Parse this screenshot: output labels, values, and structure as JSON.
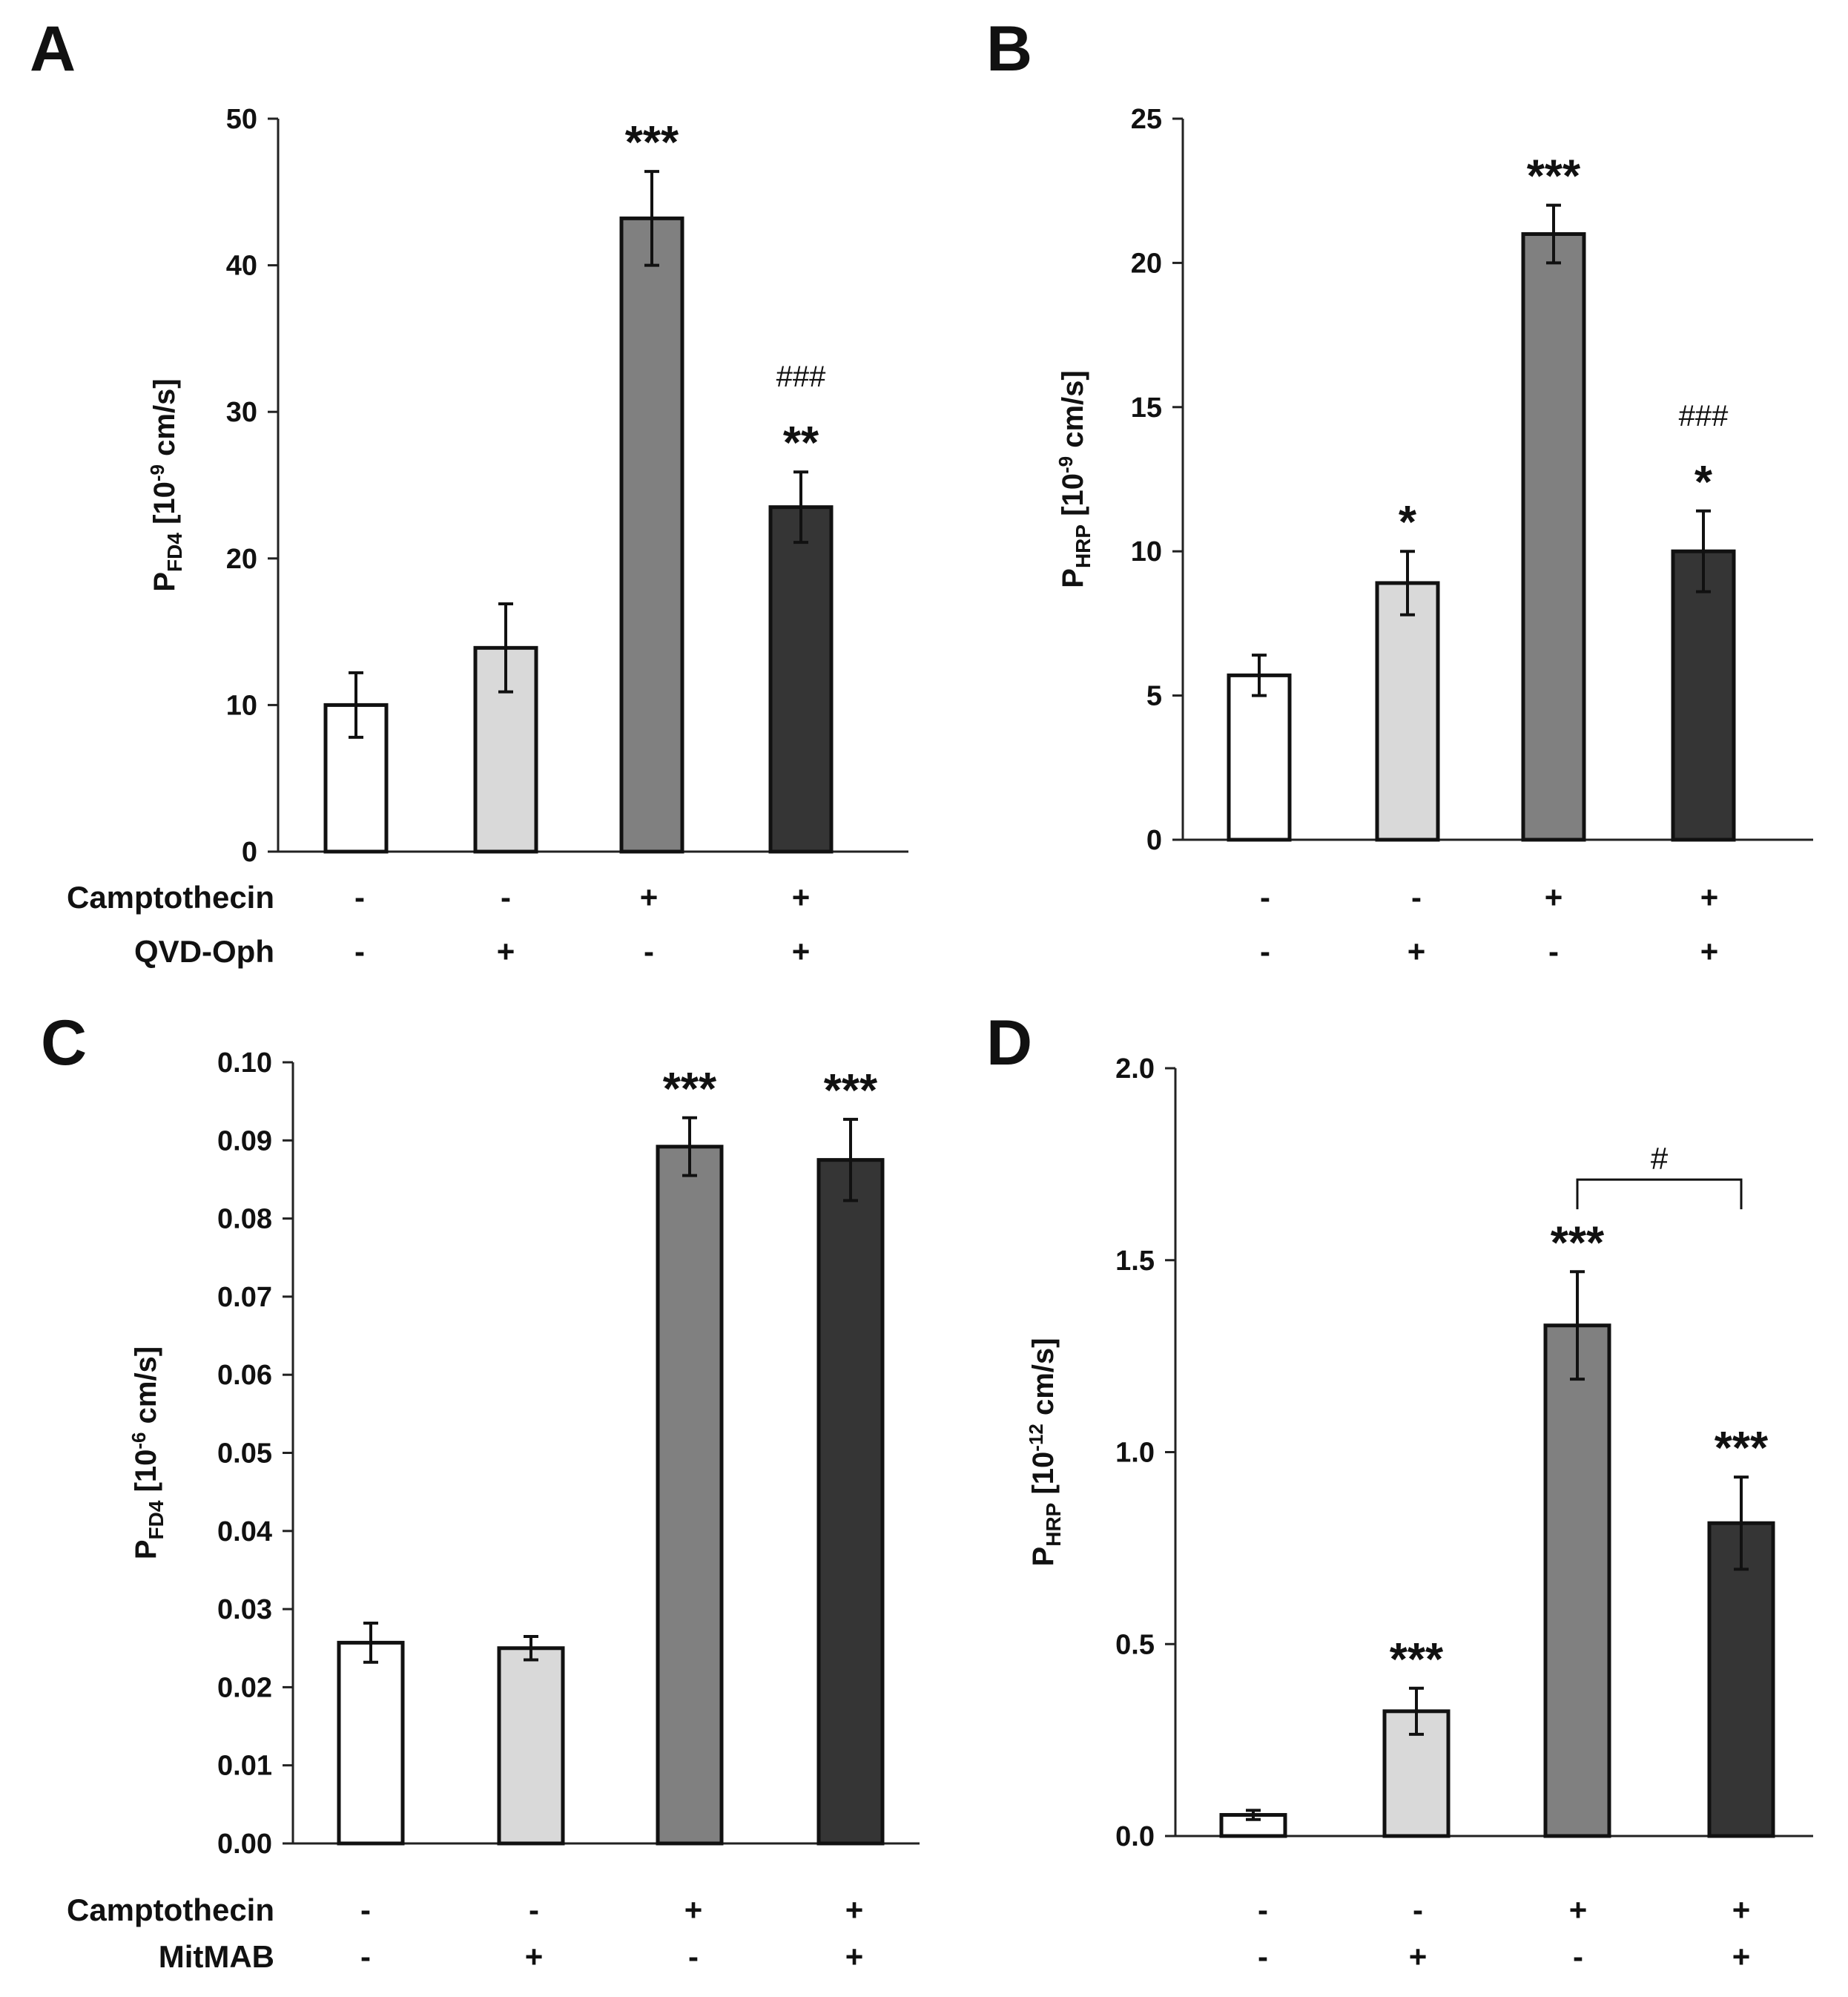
{
  "figure": {
    "row_labels_top": [
      "Camptothecin",
      "QVD-Oph"
    ],
    "row_labels_bottom": [
      "Camptothecin",
      "MitMAB"
    ]
  },
  "chart_data": [
    {
      "panel": "A",
      "type": "bar",
      "title": "",
      "ylabel": "P<sub>FD4</sub> [10<sup>-9</sup> cm/s]",
      "ylabel_main": "P",
      "ylabel_sub": "FD4",
      "ylabel_text": " [10",
      "ylabel_sup": "-9",
      "ylabel_unit": " cm/s]",
      "ylim": [
        0,
        50
      ],
      "yticks": [
        "0",
        "10",
        "20",
        "30",
        "40",
        "50"
      ],
      "treatments": [
        {
          "name": "Camptothecin",
          "values": [
            "-",
            "-",
            "+",
            "+"
          ]
        },
        {
          "name": "QVD-Oph",
          "values": [
            "-",
            "+",
            "-",
            "+"
          ]
        }
      ],
      "values": [
        10.0,
        13.9,
        43.2,
        23.5
      ],
      "errors": [
        2.2,
        3.0,
        3.2,
        2.4
      ],
      "colors": [
        "#ffffff",
        "#d9d9d9",
        "#808080",
        "#353535"
      ],
      "significance": [
        "",
        "",
        "***",
        "**"
      ],
      "comparison": [
        "",
        "",
        "",
        "###"
      ]
    },
    {
      "panel": "B",
      "type": "bar",
      "title": "",
      "ylabel_main": "P",
      "ylabel_sub": "HRP",
      "ylabel_text": " [10",
      "ylabel_sup": "-9",
      "ylabel_unit": " cm/s]",
      "ylim": [
        0,
        25
      ],
      "yticks": [
        "0",
        "5",
        "10",
        "15",
        "20",
        "25"
      ],
      "treatments": [
        {
          "name": "",
          "values": [
            "-",
            "-",
            "+",
            "+"
          ]
        },
        {
          "name": "",
          "values": [
            "-",
            "+",
            "-",
            "+"
          ]
        }
      ],
      "values": [
        5.7,
        8.9,
        21.0,
        10.0
      ],
      "errors": [
        0.7,
        1.1,
        1.0,
        1.4
      ],
      "colors": [
        "#ffffff",
        "#d9d9d9",
        "#808080",
        "#353535"
      ],
      "significance": [
        "",
        "*",
        "***",
        "*"
      ],
      "comparison": [
        "",
        "",
        "",
        "###"
      ]
    },
    {
      "panel": "C",
      "type": "bar",
      "title": "",
      "ylabel_main": "P",
      "ylabel_sub": "FD4",
      "ylabel_text": " [10",
      "ylabel_sup": "-6",
      "ylabel_unit": " cm/s]",
      "ylim": [
        0,
        0.1
      ],
      "yticks": [
        "0.00",
        "0.01",
        "0.02",
        "0.03",
        "0.04",
        "0.05",
        "0.06",
        "0.07",
        "0.08",
        "0.09",
        "0.10"
      ],
      "treatments": [
        {
          "name": "Camptothecin",
          "values": [
            "-",
            "-",
            "+",
            "+"
          ]
        },
        {
          "name": "MitMAB",
          "values": [
            "-",
            "+",
            "-",
            "+"
          ]
        }
      ],
      "values": [
        0.0257,
        0.025,
        0.0892,
        0.0875
      ],
      "errors": [
        0.0025,
        0.0015,
        0.0037,
        0.0052
      ],
      "colors": [
        "#ffffff",
        "#d9d9d9",
        "#808080",
        "#353535"
      ],
      "significance": [
        "",
        "",
        "***",
        "***"
      ],
      "comparison": [
        "",
        "",
        "",
        ""
      ]
    },
    {
      "panel": "D",
      "type": "bar",
      "title": "",
      "ylabel_main": "P",
      "ylabel_sub": "HRP",
      "ylabel_text": " [10",
      "ylabel_sup": "-12",
      "ylabel_unit": " cm/s]",
      "ylim": [
        0,
        2.0
      ],
      "yticks": [
        "0.0",
        "0.5",
        "1.0",
        "1.5",
        "2.0"
      ],
      "treatments": [
        {
          "name": "",
          "values": [
            "-",
            "-",
            "+",
            "+"
          ]
        },
        {
          "name": "",
          "values": [
            "-",
            "+",
            "-",
            "+"
          ]
        }
      ],
      "values": [
        0.055,
        0.325,
        1.33,
        0.815
      ],
      "errors": [
        0.012,
        0.06,
        0.14,
        0.12
      ],
      "colors": [
        "#ffffff",
        "#d9d9d9",
        "#808080",
        "#353535"
      ],
      "significance": [
        "",
        "***",
        "***",
        "***"
      ],
      "comparison": [
        "",
        "",
        "",
        ""
      ],
      "bracket": {
        "from": 2,
        "to": 3,
        "label": "#"
      }
    }
  ]
}
